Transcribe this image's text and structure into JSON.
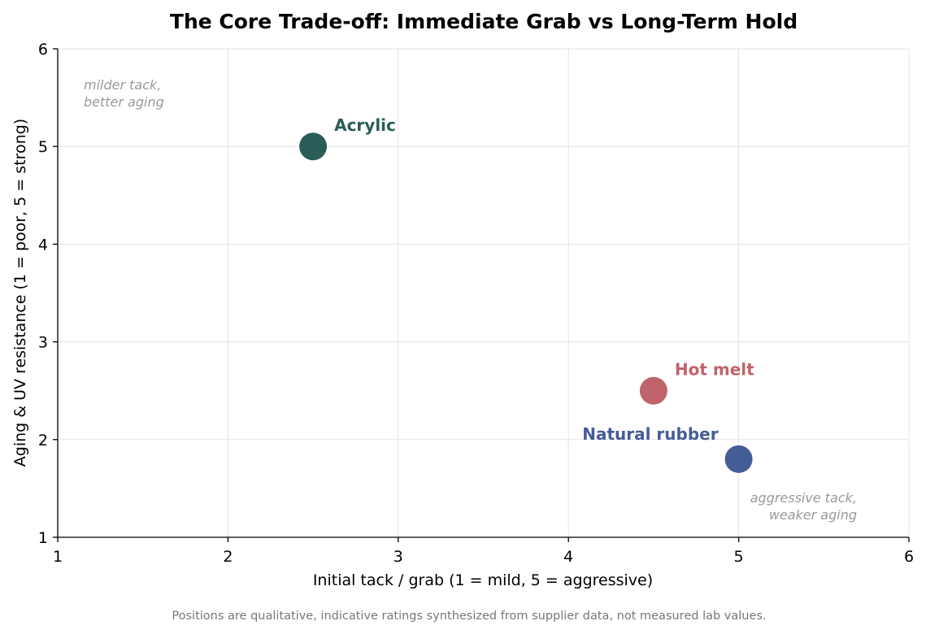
{
  "chart_data": {
    "type": "scatter",
    "title": "The Core Trade-off: Immediate Grab vs Long-Term Hold",
    "xlabel": "Initial tack / grab  (1 = mild, 5 = aggressive)",
    "ylabel": "Aging & UV resistance  (1 = poor, 5 = strong)",
    "xlim": [
      1,
      6
    ],
    "ylim": [
      1,
      6
    ],
    "xticks": [
      1,
      2,
      3,
      4,
      5,
      6
    ],
    "yticks": [
      1,
      2,
      3,
      4,
      5,
      6
    ],
    "grid": true,
    "points": [
      {
        "name": "Acrylic",
        "x": 2.5,
        "y": 5.0,
        "color": "#2a5d57"
      },
      {
        "name": "Hot melt",
        "x": 4.5,
        "y": 2.5,
        "color": "#c0636a"
      },
      {
        "name": "Natural rubber",
        "x": 5.0,
        "y": 1.8,
        "color": "#445c98"
      }
    ],
    "annotations": [
      {
        "lines": [
          "milder tack,",
          "better aging"
        ],
        "position": "top-left"
      },
      {
        "lines": [
          "aggressive tack,",
          "weaker aging"
        ],
        "position": "bottom-right"
      }
    ]
  },
  "footnote": "Positions are qualitative, indicative ratings synthesized from supplier data, not measured lab values."
}
